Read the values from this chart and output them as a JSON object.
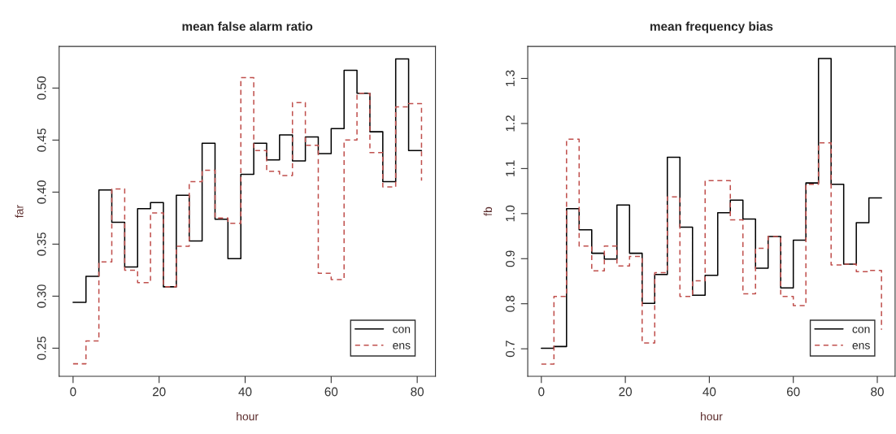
{
  "chart_data": [
    {
      "type": "step",
      "title": "mean false alarm ratio",
      "xlabel": "hour",
      "ylabel": "far",
      "x": [
        0,
        3,
        6,
        9,
        12,
        15,
        18,
        21,
        24,
        27,
        30,
        33,
        36,
        39,
        42,
        45,
        48,
        51,
        54,
        57,
        60,
        63,
        66,
        69,
        72,
        75,
        78,
        81
      ],
      "series": [
        {
          "name": "con",
          "color": "#000000",
          "line_style": "solid",
          "values": [
            0.294,
            0.319,
            0.402,
            0.371,
            0.328,
            0.384,
            0.39,
            0.309,
            0.397,
            0.353,
            0.447,
            0.374,
            0.336,
            0.417,
            0.447,
            0.431,
            0.455,
            0.43,
            0.453,
            0.437,
            0.461,
            0.517,
            0.495,
            0.458,
            0.41,
            0.528,
            0.44,
            0.44
          ]
        },
        {
          "name": "ens",
          "color": "#c0504d",
          "line_style": "dashed",
          "values": [
            0.235,
            0.257,
            0.333,
            0.403,
            0.325,
            0.313,
            0.38,
            0.309,
            0.348,
            0.41,
            0.421,
            0.375,
            0.37,
            0.51,
            0.44,
            0.42,
            0.416,
            0.486,
            0.445,
            0.322,
            0.316,
            0.45,
            0.495,
            0.438,
            0.405,
            0.482,
            0.485,
            0.411
          ]
        }
      ],
      "xlim": [
        -3.24,
        84.24
      ],
      "xticks": [
        0,
        20,
        40,
        60,
        80
      ],
      "ylim": [
        0.223,
        0.54
      ],
      "yticks": [
        {
          "value": 0.25,
          "label": "0.25"
        },
        {
          "value": 0.3,
          "label": "0.30"
        },
        {
          "value": 0.35,
          "label": "0.35"
        },
        {
          "value": 0.4,
          "label": "0.40"
        },
        {
          "value": 0.45,
          "label": "0.45"
        },
        {
          "value": 0.5,
          "label": "0.50"
        }
      ],
      "grid": false,
      "legend": "bottom right"
    },
    {
      "type": "step",
      "title": "mean frequency bias",
      "xlabel": "hour",
      "ylabel": "fb",
      "x": [
        0,
        3,
        6,
        9,
        12,
        15,
        18,
        21,
        24,
        27,
        30,
        33,
        36,
        39,
        42,
        45,
        48,
        51,
        54,
        57,
        60,
        63,
        66,
        69,
        72,
        75,
        78,
        81
      ],
      "series": [
        {
          "name": "con",
          "color": "#000000",
          "line_style": "solid",
          "values": [
            0.701,
            0.705,
            1.011,
            0.964,
            0.912,
            0.899,
            1.019,
            0.912,
            0.801,
            0.865,
            1.125,
            0.97,
            0.819,
            0.863,
            1.002,
            1.03,
            0.988,
            0.879,
            0.949,
            0.835,
            0.941,
            1.068,
            1.344,
            1.065,
            0.888,
            0.98,
            1.035,
            1.035
          ]
        },
        {
          "name": "ens",
          "color": "#c0504d",
          "line_style": "dashed",
          "values": [
            0.666,
            0.816,
            1.165,
            0.928,
            0.873,
            0.928,
            0.884,
            0.905,
            0.713,
            0.869,
            1.037,
            0.816,
            0.851,
            1.073,
            1.073,
            0.986,
            0.822,
            0.923,
            0.949,
            0.816,
            0.796,
            1.065,
            1.157,
            0.886,
            0.888,
            0.871,
            0.874,
            0.742
          ]
        }
      ],
      "xlim": [
        -3.24,
        84.24
      ],
      "xticks": [
        0,
        20,
        40,
        60,
        80
      ],
      "ylim": [
        0.639,
        1.371
      ],
      "yticks": [
        0.7,
        0.8,
        0.9,
        {
          "value": 1.0,
          "label": "1.0"
        },
        1.1,
        1.2,
        1.3
      ],
      "grid": false,
      "legend": "bottom right"
    }
  ]
}
